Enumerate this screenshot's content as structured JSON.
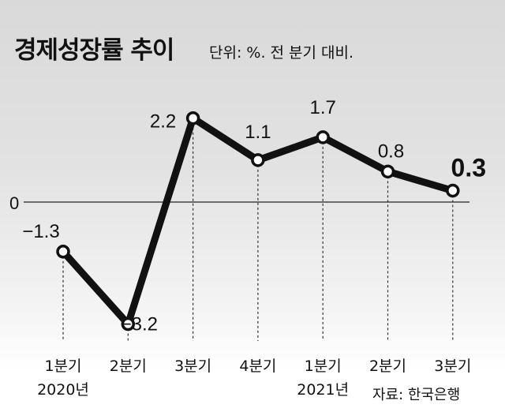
{
  "chart_data": {
    "type": "line",
    "title": "경제성장률 추이",
    "subtitle": "단위: %. 전 분기 대비.",
    "categories": [
      "1분기",
      "2분기",
      "3분기",
      "4분기",
      "1분기",
      "2분기",
      "3분기"
    ],
    "year_labels": [
      {
        "index": 0,
        "label": "2020년"
      },
      {
        "index": 4,
        "label": "2021년"
      }
    ],
    "values": [
      -1.3,
      -3.2,
      2.2,
      1.1,
      1.7,
      0.8,
      0.3
    ],
    "value_labels": [
      "−1.3",
      "−3.2",
      "2.2",
      "1.1",
      "1.7",
      "0.8",
      "0.3"
    ],
    "zero_label": "0",
    "ylim": [
      -3.6,
      2.8
    ],
    "grid": false,
    "source": "자료: 한국은행",
    "colors": {
      "line": "#111111",
      "marker_fill": "#ffffff"
    }
  }
}
